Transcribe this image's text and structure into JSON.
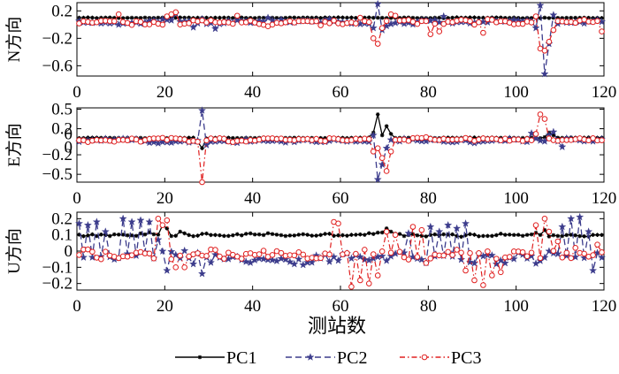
{
  "chart_data": {
    "type": "line",
    "xlabel": "测站数",
    "legend": {
      "placement": "bottom",
      "entries": [
        {
          "name": "PC1",
          "color": "#000000",
          "marker": "asterisk",
          "dash": "solid"
        },
        {
          "name": "PC2",
          "color": "#3c3c8c",
          "marker": "star",
          "dash": "dashed"
        },
        {
          "name": "PC3",
          "color": "#e02020",
          "marker": "circle",
          "dash": "dashdot"
        }
      ]
    },
    "x_ticks": [
      0,
      20,
      40,
      60,
      80,
      100,
      120
    ],
    "xlim": [
      0,
      120
    ],
    "panels": [
      {
        "ylabel": "N方向",
        "ylim": [
          -0.75,
          0.32
        ],
        "y_ticks": [
          0.2,
          -0.2,
          -0.6
        ],
        "y_tick_labels": [
          "0.2",
          "−0.2",
          "−0.6"
        ],
        "series": [
          {
            "name": "PC1",
            "base": 0.1,
            "noise": 0.006,
            "spikes": []
          },
          {
            "name": "PC2",
            "base": 0.04,
            "noise": 0.035,
            "spikes": [
              [
                22,
                0.16
              ],
              [
                26,
                -0.04
              ],
              [
                28,
                0.08
              ],
              [
                31,
                -0.06
              ],
              [
                43,
                0.1
              ],
              [
                67,
                -0.05
              ],
              [
                68,
                0.3
              ],
              [
                69,
                -0.08
              ],
              [
                70,
                -0.02
              ],
              [
                83,
                0.12
              ],
              [
                104,
                -0.05
              ],
              [
                105,
                0.28
              ],
              [
                106,
                -0.72
              ],
              [
                107,
                -0.28
              ],
              [
                108,
                0.14
              ],
              [
                118,
                0.07
              ]
            ]
          },
          {
            "name": "PC3",
            "base": 0.03,
            "noise": 0.045,
            "spikes": [
              [
                9,
                0.15
              ],
              [
                20,
                0.12
              ],
              [
                21,
                0.15
              ],
              [
                22,
                0.18
              ],
              [
                36,
                0.13
              ],
              [
                64,
                0.1
              ],
              [
                67,
                -0.2
              ],
              [
                68,
                -0.28
              ],
              [
                69,
                -0.05
              ],
              [
                71,
                0.15
              ],
              [
                72,
                0.13
              ],
              [
                80,
                -0.14
              ],
              [
                82,
                -0.1
              ],
              [
                92,
                -0.12
              ],
              [
                104,
                0.12
              ],
              [
                105,
                -0.35
              ],
              [
                106,
                -0.38
              ],
              [
                107,
                -0.25
              ],
              [
                108,
                -0.08
              ],
              [
                119,
                -0.1
              ]
            ]
          }
        ]
      },
      {
        "ylabel": "E方向",
        "ylim": [
          -0.62,
          0.52
        ],
        "y_ticks": [
          0.5,
          0.2,
          -0.2,
          -0.5
        ],
        "y_tick_labels": [
          "0.5",
          "0.2",
          "−0.2",
          "−0.5"
        ],
        "extra_tick_labels": [
          "0",
          "0"
        ],
        "series": [
          {
            "name": "PC1",
            "base": 0.06,
            "noise": 0.006,
            "spikes": [
              [
                27,
                0.0
              ],
              [
                28,
                -0.1
              ],
              [
                29,
                0.05
              ],
              [
                67,
                0.14
              ],
              [
                68,
                0.42
              ],
              [
                69,
                0.1
              ],
              [
                70,
                0.24
              ],
              [
                71,
                0.12
              ],
              [
                106,
                0.07
              ],
              [
                107,
                0.14
              ],
              [
                108,
                0.1
              ]
            ]
          },
          {
            "name": "PC2",
            "base": 0.02,
            "noise": 0.035,
            "spikes": [
              [
                27,
                0.02
              ],
              [
                28,
                0.48
              ],
              [
                29,
                -0.05
              ],
              [
                67,
                0.1
              ],
              [
                68,
                -0.58
              ],
              [
                69,
                -0.35
              ],
              [
                70,
                -0.1
              ],
              [
                103,
                0.13
              ],
              [
                104,
                0.05
              ],
              [
                107,
                0.1
              ],
              [
                108,
                0.15
              ],
              [
                110,
                -0.08
              ]
            ]
          },
          {
            "name": "PC3",
            "base": 0.03,
            "noise": 0.035,
            "spikes": [
              [
                27,
                0.0
              ],
              [
                28,
                -0.62
              ],
              [
                29,
                0.02
              ],
              [
                67,
                -0.15
              ],
              [
                68,
                -0.1
              ],
              [
                69,
                -0.25
              ],
              [
                70,
                -0.45
              ],
              [
                71,
                -0.15
              ],
              [
                104,
                0.12
              ],
              [
                105,
                0.42
              ],
              [
                106,
                0.35
              ],
              [
                107,
                0.05
              ]
            ]
          }
        ]
      },
      {
        "ylabel": "U方向",
        "ylim": [
          -0.24,
          0.24
        ],
        "y_ticks": [
          0.2,
          0.1,
          0,
          -0.1,
          -0.2
        ],
        "y_tick_labels": [
          "0.2",
          "0.1",
          "0",
          "−0.1",
          "−0.2"
        ],
        "series": [
          {
            "name": "PC1",
            "base": 0.1,
            "noise": 0.012,
            "spikes": [
              [
                19,
                0.16
              ],
              [
                20,
                0.14
              ],
              [
                23,
                0.12
              ],
              [
                70,
                0.14
              ],
              [
                71,
                0.12
              ],
              [
                106,
                0.13
              ]
            ]
          },
          {
            "name": "PC2",
            "base": -0.04,
            "noise": 0.04,
            "spikes": [
              [
                0,
                0.17
              ],
              [
                2,
                0.16
              ],
              [
                4,
                0.18
              ],
              [
                6,
                0.12
              ],
              [
                10,
                0.2
              ],
              [
                12,
                0.18
              ],
              [
                14,
                0.19
              ],
              [
                16,
                0.18
              ],
              [
                18,
                0.07
              ],
              [
                20,
                -0.12
              ],
              [
                26,
                -0.08
              ],
              [
                28,
                -0.14
              ],
              [
                75,
                0.11
              ],
              [
                80,
                0.15
              ],
              [
                82,
                0.12
              ],
              [
                84,
                0.16
              ],
              [
                86,
                0.14
              ],
              [
                88,
                0.17
              ],
              [
                95,
                -0.08
              ],
              [
                105,
                -0.06
              ],
              [
                110,
                0.15
              ],
              [
                112,
                0.2
              ],
              [
                114,
                0.21
              ],
              [
                116,
                0.12
              ],
              [
                117,
                -0.12
              ],
              [
                119,
                -0.04
              ]
            ]
          },
          {
            "name": "PC3",
            "base": -0.02,
            "noise": 0.04,
            "spikes": [
              [
                5,
                -0.05
              ],
              [
                18,
                0.2
              ],
              [
                19,
                0.16
              ],
              [
                20,
                0.19
              ],
              [
                22,
                -0.1
              ],
              [
                24,
                -0.1
              ],
              [
                58,
                0.18
              ],
              [
                59,
                0.17
              ],
              [
                60,
                -0.02
              ],
              [
                62,
                -0.22
              ],
              [
                64,
                -0.18
              ],
              [
                66,
                -0.2
              ],
              [
                68,
                -0.15
              ],
              [
                70,
                0.12
              ],
              [
                72,
                0.1
              ],
              [
                76,
                0.15
              ],
              [
                78,
                0.13
              ],
              [
                88,
                -0.12
              ],
              [
                90,
                -0.18
              ],
              [
                92,
                -0.21
              ],
              [
                94,
                -0.15
              ],
              [
                96,
                -0.13
              ],
              [
                104,
                0.16
              ],
              [
                106,
                0.2
              ],
              [
                107,
                0.12
              ],
              [
                109,
                0.06
              ],
              [
                113,
                0.02
              ],
              [
                118,
                0.04
              ]
            ]
          }
        ]
      }
    ]
  }
}
